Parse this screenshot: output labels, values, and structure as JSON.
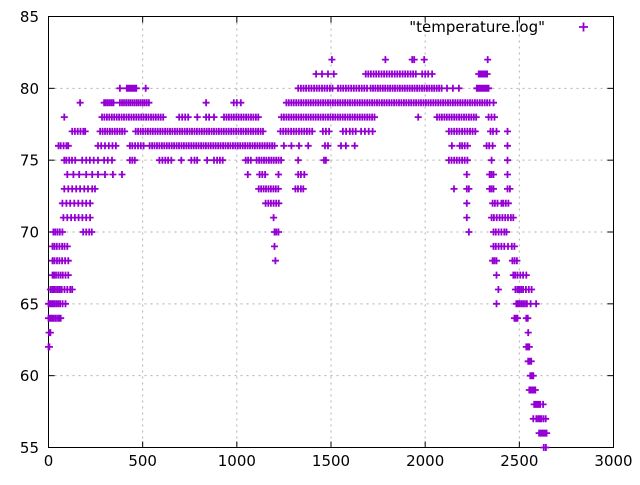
{
  "chart_data": {
    "type": "scatter",
    "title": "",
    "legend": "\"temperature.log\"",
    "legend_position": "top-right-inside",
    "xlabel": "",
    "ylabel": "",
    "xlim": [
      0,
      3000
    ],
    "ylim": [
      55,
      85
    ],
    "x_ticks": [
      0,
      500,
      1000,
      1500,
      2000,
      2500,
      3000
    ],
    "x_tick_labels": [
      "0",
      "500",
      "1000",
      "1500",
      "2000",
      "2500",
      "3000"
    ],
    "y_ticks": [
      55,
      60,
      65,
      70,
      75,
      80,
      85
    ],
    "y_tick_labels": [
      "55",
      "60",
      "65",
      "70",
      "75",
      "80",
      "85"
    ],
    "grid": true,
    "marker": "plus",
    "marker_color": "#9400d3",
    "grid_color": "#b0b0b0",
    "axis_color": "#000000",
    "background_color": "#ffffff",
    "series_rows": [
      {
        "t": 82,
        "xs": [
          1505,
          1789,
          1931,
          1942,
          1995,
          2332
        ],
        "runs": []
      },
      {
        "t": 81,
        "xs": [
          1421,
          1452,
          1484,
          1515,
          1984,
          2000,
          2016,
          2037
        ],
        "runs": [
          [
            1684,
            1958,
            14
          ],
          [
            2284,
            2337,
            9
          ]
        ]
      },
      {
        "t": 80,
        "xs": [
          379,
          416,
          516,
          2116,
          2147,
          2179
        ],
        "runs": [
          [
            421,
            468,
            9
          ],
          [
            1326,
            1510,
            14
          ],
          [
            1537,
            1695,
            14
          ],
          [
            1710,
            2089,
            13
          ],
          [
            2274,
            2337,
            9
          ]
        ]
      },
      {
        "t": 79,
        "xs": [
          168,
          837,
          984,
          1000,
          1021,
          2363
        ],
        "runs": [
          [
            295,
            345,
            10
          ],
          [
            379,
            537,
            11
          ],
          [
            1263,
            2353,
            13
          ]
        ]
      },
      {
        "t": 78,
        "xs": [
          84,
          694,
          710,
          726,
          742,
          790,
          837,
          853,
          879,
          1963,
          2337,
          2352,
          2368
        ],
        "runs": [
          [
            284,
            616,
            13
          ],
          [
            932,
            1116,
            13
          ],
          [
            1237,
            1731,
            13
          ],
          [
            2063,
            2274,
            13
          ]
        ]
      },
      {
        "t": 77,
        "xs": [
          126,
          140,
          155,
          170,
          185,
          195,
          1457,
          1473,
          1490,
          1563,
          1580,
          1600,
          1615,
          1631,
          1660,
          1680,
          1700,
          1721,
          2347,
          2360,
          2379,
          2437
        ],
        "runs": [
          [
            274,
            416,
            13
          ],
          [
            463,
            1142,
            13
          ],
          [
            1232,
            1405,
            14
          ],
          [
            2126,
            2274,
            14
          ]
        ]
      },
      {
        "t": 76,
        "xs": [
          53,
          65,
          80,
          95,
          105,
          263,
          280,
          300,
          320,
          340,
          358,
          432,
          445,
          460,
          475,
          490,
          505,
          1250,
          1290,
          1330,
          1379,
          1468,
          1484,
          1553,
          1579,
          1626,
          2142,
          2184,
          2196,
          2210,
          2225,
          2326,
          2340,
          2358,
          2437
        ],
        "runs": [
          [
            537,
            1210,
            13
          ]
        ]
      },
      {
        "t": 75,
        "xs": [
          84,
          95,
          110,
          125,
          142,
          179,
          200,
          220,
          240,
          263,
          295,
          315,
          337,
          432,
          445,
          458,
          589,
          605,
          620,
          635,
          652,
          705,
          758,
          775,
          789,
          842,
          879,
          895,
          910,
          925,
          1047,
          1060,
          1074,
          1326,
          1463,
          1473,
          2353,
          2437
        ],
        "runs": [
          [
            1105,
            1237,
            13
          ],
          [
            2126,
            2232,
            14
          ]
        ]
      },
      {
        "t": 74,
        "xs": [
          100,
          132,
          163,
          200,
          232,
          263,
          300,
          342,
          390,
          1058,
          1121,
          1135,
          1150,
          1221,
          1326,
          1340,
          1358,
          2221,
          2342,
          2352,
          2363,
          2437
        ],
        "runs": []
      },
      {
        "t": 73,
        "xs": [
          84,
          105,
          126,
          147,
          168,
          190,
          210,
          232,
          247,
          1311,
          1325,
          1340,
          1353,
          2153,
          2221,
          2232,
          2342,
          2352,
          2363,
          2437,
          2450
        ],
        "runs": [
          [
            1116,
            1232,
            13
          ]
        ]
      },
      {
        "t": 72,
        "xs": [
          74,
          95,
          115,
          137,
          158,
          180,
          200,
          221,
          2221,
          2358,
          2370,
          2384,
          2405,
          2415,
          2428,
          2442
        ],
        "runs": [
          [
            1153,
            1225,
            14
          ]
        ]
      },
      {
        "t": 71,
        "xs": [
          79,
          100,
          120,
          140,
          160,
          180,
          200,
          221,
          1195,
          2221,
          2353,
          2365,
          2380,
          2395,
          2410,
          2425,
          2440,
          2455,
          2468
        ],
        "runs": []
      },
      {
        "t": 70,
        "xs": [
          26,
          36,
          48,
          60,
          74,
          184,
          200,
          216,
          230,
          1200,
          1210,
          1221,
          2232,
          2363,
          2375,
          2390,
          2405,
          2420,
          2432
        ],
        "runs": []
      },
      {
        "t": 69,
        "xs": [
          21,
          32,
          44,
          58,
          72,
          85,
          100,
          1200,
          2363,
          2375,
          2390,
          2405,
          2420,
          2440,
          2460,
          2474
        ],
        "runs": []
      },
      {
        "t": 68,
        "xs": [
          21,
          32,
          45,
          58,
          72,
          88,
          105,
          1205,
          2358,
          2368,
          2379,
          2463,
          2475,
          2487
        ],
        "runs": []
      },
      {
        "t": 67,
        "xs": [
          21,
          30,
          40,
          52,
          64,
          76,
          90,
          105,
          2379,
          2468,
          2478,
          2490,
          2505,
          2520,
          2537
        ],
        "runs": []
      },
      {
        "t": 66,
        "xs": [
          10,
          20,
          30,
          40,
          50,
          60,
          70,
          85,
          100,
          115,
          126,
          2389,
          2479,
          2490,
          2500,
          2510,
          2520,
          2535,
          2550,
          2565
        ],
        "runs": []
      },
      {
        "t": 65,
        "xs": [
          0,
          8,
          16,
          24,
          32,
          42,
          52,
          62,
          75,
          90,
          2379,
          2484,
          2492,
          2500,
          2510,
          2520,
          2530,
          2540,
          2560,
          2589
        ],
        "runs": []
      },
      {
        "t": 64,
        "xs": [
          0,
          8,
          16,
          25,
          35,
          45,
          55,
          65,
          2474,
          2482,
          2490,
          2537,
          2545
        ],
        "runs": []
      },
      {
        "t": 63,
        "xs": [
          3,
          10,
          2547
        ],
        "runs": []
      },
      {
        "t": 62,
        "xs": [
          0,
          5,
          2537,
          2545,
          2553
        ],
        "runs": []
      },
      {
        "t": 61,
        "xs": [
          2547,
          2555,
          2563
        ],
        "runs": []
      },
      {
        "t": 60,
        "xs": [
          2558,
          2566,
          2574
        ],
        "runs": []
      },
      {
        "t": 59,
        "xs": [
          2553,
          2561,
          2569,
          2577,
          2585
        ],
        "runs": []
      },
      {
        "t": 58,
        "xs": [
          2579,
          2587,
          2595,
          2603,
          2611,
          2626
        ],
        "runs": []
      },
      {
        "t": 57,
        "xs": [
          2574,
          2590,
          2600,
          2608,
          2616,
          2628,
          2640
        ],
        "runs": []
      },
      {
        "t": 56,
        "xs": [
          2605,
          2613,
          2621,
          2629,
          2637,
          2645
        ],
        "runs": []
      },
      {
        "t": 55,
        "xs": [
          2630,
          2641
        ],
        "runs": []
      }
    ]
  }
}
